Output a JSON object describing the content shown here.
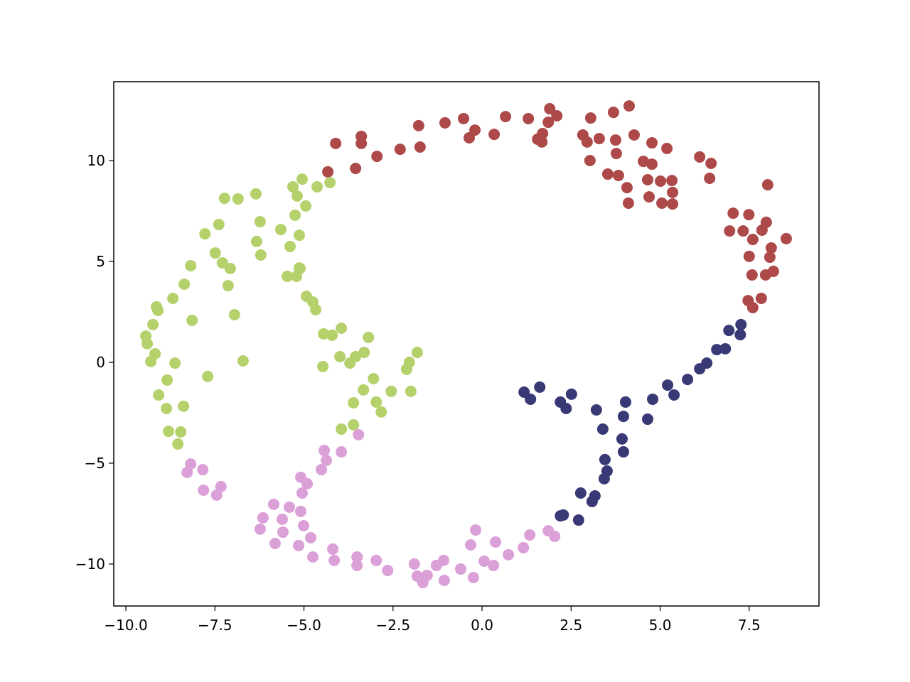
{
  "chart_data": {
    "type": "scatter",
    "xlim": [
      -10.34,
      9.46
    ],
    "ylim": [
      -12.08,
      13.91
    ],
    "xticks": [
      {
        "value": -10,
        "label": "−10.0"
      },
      {
        "value": -7.5,
        "label": "−7.5"
      },
      {
        "value": -5,
        "label": "−5.0"
      },
      {
        "value": -2.5,
        "label": "−2.5"
      },
      {
        "value": 0,
        "label": "0.0"
      },
      2.5,
      {
        "value": 5,
        "label": "5.0"
      },
      7.5
    ],
    "yticks": [
      {
        "value": -10,
        "label": "−10"
      },
      {
        "value": -5,
        "label": "−5"
      },
      0,
      5,
      10
    ],
    "series": [
      {
        "color": "#ad4949",
        "x": [
          -4.11,
          -4.33,
          -3.39,
          -3.39,
          -3.55,
          -2.95,
          -2.3,
          -1.78,
          -1.74,
          -1.04,
          -0.52,
          -0.36,
          -0.2,
          0.34,
          0.66,
          1.3,
          1.9,
          2.1,
          1.86,
          1.7,
          1.56,
          1.68,
          2.83,
          3.05,
          2.95,
          3.29,
          3.03,
          3.69,
          3.75,
          3.77,
          3.53,
          3.83,
          4.13,
          4.27,
          4.07,
          4.11,
          4.53,
          4.65,
          4.77,
          4.77,
          4.69,
          5.01,
          5.19,
          5.33,
          5.35,
          5.05,
          5.35,
          6.11,
          6.43,
          6.39,
          8.02,
          7.05,
          7.49,
          7.33,
          6.95,
          7.86,
          7.98,
          7.6,
          8.12,
          7.5,
          8.08,
          7.58,
          7.96,
          8.18,
          8.54,
          7.47,
          7.6,
          7.84
        ],
        "y": [
          10.85,
          9.44,
          11.2,
          10.85,
          9.61,
          10.21,
          10.56,
          11.73,
          10.67,
          11.87,
          12.08,
          11.13,
          11.51,
          11.3,
          12.18,
          12.08,
          12.57,
          12.22,
          11.9,
          11.34,
          11.06,
          10.92,
          11.27,
          12.11,
          10.92,
          11.09,
          10.0,
          12.39,
          11.02,
          10.35,
          9.33,
          9.26,
          12.71,
          11.27,
          8.66,
          7.89,
          9.96,
          9.05,
          10.88,
          9.82,
          8.2,
          8.98,
          10.6,
          9.01,
          8.42,
          7.89,
          7.85,
          10.18,
          9.86,
          9.12,
          8.8,
          7.39,
          7.32,
          6.51,
          6.51,
          6.55,
          6.94,
          6.09,
          5.67,
          5.25,
          5.21,
          4.33,
          4.33,
          4.51,
          6.13,
          3.06,
          2.71,
          3.17
        ]
      },
      {
        "color": "#b5d16b",
        "x": [
          -5.05,
          -4.63,
          -4.27,
          -5.19,
          -4.95,
          -5.31,
          -5.25,
          -5.13,
          -5.39,
          -5.13,
          -5.47,
          -5.21,
          -5.11,
          -5.65,
          -6.35,
          -6.23,
          -7.23,
          -6.85,
          -7.39,
          -7.78,
          -7.49,
          -7.29,
          -7.07,
          -6.33,
          -6.21,
          -8.18,
          -8.36,
          -8.68,
          -9.14,
          -9.1,
          -9.24,
          -8.14,
          -6.95,
          -7.13,
          -9.44,
          -9.4,
          -9.18,
          -9.3,
          -8.62,
          -6.71,
          -7.7,
          -8.84,
          -9.08,
          -8.86,
          -8.38,
          -8.8,
          -8.46,
          -8.54,
          -4.93,
          -4.75,
          -4.67,
          -4.45,
          -4.21,
          -3.95,
          -3.19,
          -3.99,
          -3.71,
          -3.55,
          -3.31,
          -4.47,
          -1.82,
          -2.04,
          -2.12,
          -3.05,
          -3.33,
          -2.55,
          -2.0,
          -3.61,
          -2.97,
          -2.83,
          -3.61,
          -3.95
        ],
        "y": [
          9.08,
          8.7,
          8.91,
          8.24,
          7.75,
          8.7,
          7.29,
          6.3,
          5.74,
          4.68,
          4.26,
          4.26,
          4.65,
          6.58,
          8.35,
          6.97,
          8.13,
          8.1,
          6.83,
          6.37,
          5.42,
          4.93,
          4.65,
          5.99,
          5.32,
          4.79,
          3.87,
          3.17,
          2.75,
          2.57,
          1.87,
          2.08,
          2.36,
          3.8,
          1.3,
          0.92,
          0.42,
          0.04,
          -0.04,
          0.07,
          -0.7,
          -0.88,
          -1.62,
          -2.29,
          -2.18,
          -3.42,
          -3.45,
          -4.05,
          3.27,
          2.99,
          2.61,
          1.41,
          1.34,
          1.69,
          1.23,
          0.28,
          -0.04,
          0.28,
          0.49,
          -0.21,
          0.49,
          0.0,
          -0.35,
          -0.81,
          -1.37,
          -1.44,
          -1.44,
          -2.01,
          -1.97,
          -2.46,
          -3.1,
          -3.31
        ]
      },
      {
        "color": "#393976",
        "x": [
          1.18,
          1.36,
          1.62,
          2.2,
          2.36,
          2.51,
          3.21,
          4.03,
          3.97,
          3.39,
          3.93,
          3.97,
          3.45,
          3.51,
          3.43,
          2.77,
          3.17,
          3.09,
          2.28,
          2.2,
          2.71,
          4.65,
          4.79,
          5.21,
          5.39,
          5.77,
          6.11,
          6.31,
          6.59,
          6.83,
          6.93,
          7.27,
          7.25
        ],
        "y": [
          -1.48,
          -1.83,
          -1.23,
          -1.97,
          -2.29,
          -1.58,
          -2.36,
          -1.97,
          -2.68,
          -3.31,
          -3.8,
          -4.44,
          -4.82,
          -5.39,
          -5.77,
          -6.48,
          -6.62,
          -6.9,
          -7.57,
          -7.61,
          -7.82,
          -2.82,
          -1.83,
          -1.13,
          -1.62,
          -0.85,
          -0.32,
          -0.04,
          0.63,
          0.67,
          1.58,
          1.87,
          1.37
        ]
      },
      {
        "color": "#dca0d8",
        "x": [
          -3.47,
          -4.43,
          -3.95,
          -4.37,
          -4.51,
          -8.18,
          -8.28,
          -7.84,
          -7.82,
          -7.33,
          -7.45,
          -5.09,
          -4.91,
          -5.05,
          -6.15,
          -5.85,
          -5.41,
          -6.23,
          -5.61,
          -5.09,
          -5.59,
          -5.01,
          -4.81,
          -5.81,
          -5.15,
          -4.19,
          -4.75,
          -4.15,
          -3.51,
          -3.51,
          -2.97,
          -2.65,
          -1.9,
          -1.82,
          -1.66,
          -1.54,
          -1.28,
          -1.06,
          -1.08,
          -0.6,
          -0.24,
          -0.18,
          -0.32,
          0.06,
          0.32,
          0.38,
          0.74,
          1.16,
          1.34,
          1.86,
          2.04
        ],
        "y": [
          -3.59,
          -4.37,
          -4.44,
          -4.86,
          -5.32,
          -5.04,
          -5.46,
          -5.32,
          -6.34,
          -6.16,
          -6.58,
          -5.7,
          -6.02,
          -6.48,
          -7.71,
          -7.04,
          -7.18,
          -8.27,
          -7.78,
          -7.39,
          -8.42,
          -8.1,
          -8.7,
          -8.98,
          -9.08,
          -9.26,
          -9.65,
          -9.82,
          -9.65,
          -10.07,
          -9.82,
          -10.32,
          -10.0,
          -10.6,
          -10.92,
          -10.56,
          -10.07,
          -10.81,
          -9.82,
          -10.25,
          -10.67,
          -8.31,
          -9.05,
          -9.86,
          -10.07,
          -8.91,
          -9.54,
          -9.19,
          -8.56,
          -8.35,
          -8.63
        ]
      }
    ]
  }
}
